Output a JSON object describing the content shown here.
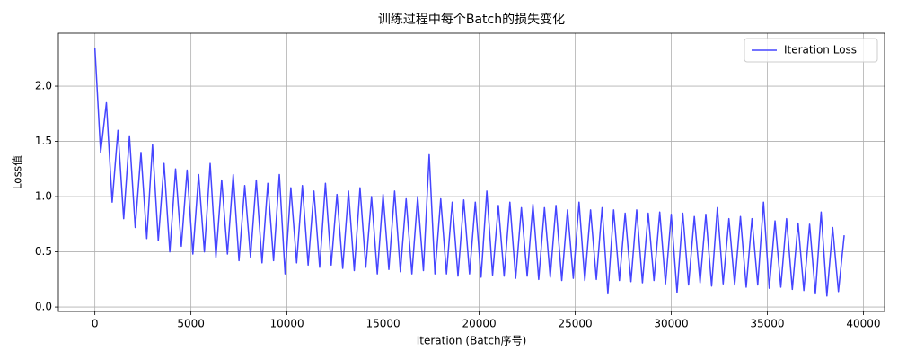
{
  "chart_data": {
    "type": "line",
    "title": "训练过程中每个Batch的损失变化",
    "x_label": "Iteration (Batch序号)",
    "y_label": "Loss值",
    "x": [
      0,
      300,
      600,
      900,
      1200,
      1500,
      1800,
      2100,
      2400,
      2700,
      3000,
      3300,
      3600,
      3900,
      4200,
      4500,
      4800,
      5100,
      5400,
      5700,
      6000,
      6300,
      6600,
      6900,
      7200,
      7500,
      7800,
      8100,
      8400,
      8700,
      9000,
      9300,
      9600,
      9900,
      10200,
      10500,
      10800,
      11100,
      11400,
      11700,
      12000,
      12300,
      12600,
      12900,
      13200,
      13500,
      13800,
      14100,
      14400,
      14700,
      15000,
      15300,
      15600,
      15900,
      16200,
      16500,
      16800,
      17100,
      17400,
      17700,
      18000,
      18300,
      18600,
      18900,
      19200,
      19500,
      19800,
      20100,
      20400,
      20700,
      21000,
      21300,
      21600,
      21900,
      22200,
      22500,
      22800,
      23100,
      23400,
      23700,
      24000,
      24300,
      24600,
      24900,
      25200,
      25500,
      25800,
      26100,
      26400,
      26700,
      27000,
      27300,
      27600,
      27900,
      28200,
      28500,
      28800,
      29100,
      29400,
      29700,
      30000,
      30300,
      30600,
      30900,
      31200,
      31500,
      31800,
      32100,
      32400,
      32700,
      33000,
      33300,
      33600,
      33900,
      34200,
      34500,
      34800,
      35100,
      35400,
      35700,
      36000,
      36300,
      36600,
      36900,
      37200,
      37500,
      37800,
      38100,
      38400,
      38700,
      39000
    ],
    "series": [
      {
        "name": "Iteration Loss",
        "color": "#4545ff",
        "values": [
          2.35,
          1.4,
          1.85,
          0.95,
          1.6,
          0.8,
          1.55,
          0.72,
          1.4,
          0.62,
          1.47,
          0.6,
          1.3,
          0.5,
          1.25,
          0.55,
          1.24,
          0.48,
          1.2,
          0.5,
          1.3,
          0.45,
          1.15,
          0.48,
          1.2,
          0.42,
          1.1,
          0.45,
          1.15,
          0.4,
          1.12,
          0.42,
          1.2,
          0.3,
          1.08,
          0.4,
          1.1,
          0.38,
          1.05,
          0.36,
          1.12,
          0.38,
          1.02,
          0.35,
          1.05,
          0.33,
          1.08,
          0.36,
          1.0,
          0.3,
          1.02,
          0.34,
          1.05,
          0.32,
          0.98,
          0.3,
          1.0,
          0.33,
          1.38,
          0.3,
          0.98,
          0.3,
          0.95,
          0.28,
          0.97,
          0.3,
          0.95,
          0.27,
          1.05,
          0.29,
          0.92,
          0.28,
          0.95,
          0.26,
          0.9,
          0.28,
          0.93,
          0.25,
          0.9,
          0.27,
          0.92,
          0.24,
          0.88,
          0.26,
          0.95,
          0.24,
          0.88,
          0.25,
          0.9,
          0.12,
          0.88,
          0.24,
          0.85,
          0.23,
          0.88,
          0.22,
          0.85,
          0.24,
          0.86,
          0.21,
          0.84,
          0.13,
          0.85,
          0.2,
          0.82,
          0.22,
          0.84,
          0.19,
          0.9,
          0.21,
          0.8,
          0.2,
          0.82,
          0.18,
          0.8,
          0.2,
          0.95,
          0.17,
          0.78,
          0.18,
          0.8,
          0.16,
          0.76,
          0.15,
          0.75,
          0.12,
          0.86,
          0.1,
          0.72,
          0.14,
          0.65
        ]
      }
    ],
    "xlim": [
      -1900,
      41100
    ],
    "ylim": [
      -0.04,
      2.48
    ],
    "xticks": [
      0,
      5000,
      10000,
      15000,
      20000,
      25000,
      30000,
      35000,
      40000
    ],
    "yticks": [
      {
        "value": 0,
        "label": "0.0"
      },
      0.5,
      {
        "value": 1,
        "label": "1.0"
      },
      1.5,
      {
        "value": 2,
        "label": "2.0"
      }
    ],
    "grid": true,
    "legend": "upper right"
  }
}
